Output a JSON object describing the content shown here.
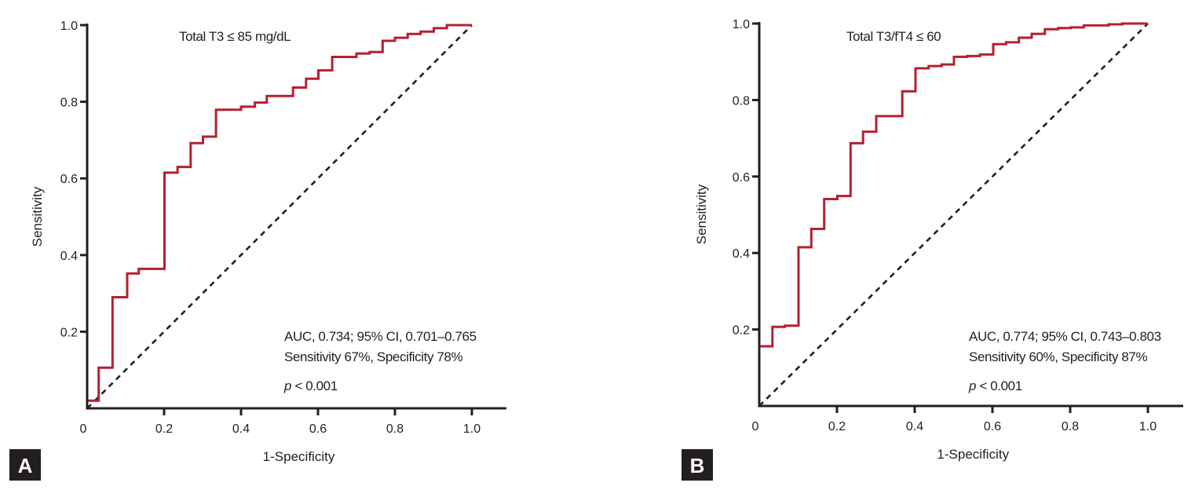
{
  "chart_data": [
    {
      "type": "line",
      "panel_label": "A",
      "title": "Total T3 ≤ 85 mg/dL",
      "xlabel": "1-Specificity",
      "ylabel": "Sensitivity",
      "xlim": [
        0,
        1.0
      ],
      "ylim": [
        0,
        1.0
      ],
      "xticks": [
        "0",
        "0.2",
        "0.4",
        "0.6",
        "0.8",
        "1.0"
      ],
      "yticks": [
        "0.2",
        "0.4",
        "0.6",
        "0.8",
        "1.0"
      ],
      "grid": false,
      "annotations": [
        "AUC, 0.734; 95% CI, 0.701–0.765",
        "Sensitivity 67%, Specificity 78%",
        "p",
        " < 0.001"
      ],
      "series": [
        {
          "name": "ROC",
          "color": "#b5202e",
          "style": "step",
          "x": [
            0,
            0,
            0.03,
            0.03,
            0.066,
            0.066,
            0.104,
            0.104,
            0.134,
            0.134,
            0.201,
            0.201,
            0.235,
            0.235,
            0.269,
            0.269,
            0.301,
            0.301,
            0.335,
            0.335,
            0.4,
            0.4,
            0.436,
            0.436,
            0.467,
            0.467,
            0.535,
            0.535,
            0.569,
            0.569,
            0.601,
            0.601,
            0.637,
            0.637,
            0.7,
            0.7,
            0.734,
            0.734,
            0.768,
            0.768,
            0.8,
            0.8,
            0.833,
            0.833,
            0.867,
            0.867,
            0.901,
            0.901,
            0.935,
            0.935,
            1.0
          ],
          "y": [
            0,
            0.02,
            0.02,
            0.106,
            0.106,
            0.29,
            0.29,
            0.352,
            0.352,
            0.364,
            0.364,
            0.615,
            0.615,
            0.63,
            0.63,
            0.692,
            0.692,
            0.709,
            0.709,
            0.779,
            0.779,
            0.787,
            0.787,
            0.798,
            0.798,
            0.815,
            0.815,
            0.837,
            0.837,
            0.86,
            0.86,
            0.882,
            0.882,
            0.917,
            0.917,
            0.926,
            0.926,
            0.93,
            0.93,
            0.959,
            0.959,
            0.967,
            0.967,
            0.977,
            0.977,
            0.983,
            0.983,
            0.992,
            0.992,
            1.0,
            1.0
          ]
        },
        {
          "name": "Reference",
          "color": "#231f20",
          "style": "dashed",
          "x": [
            0,
            1
          ],
          "y": [
            0,
            1
          ]
        }
      ]
    },
    {
      "type": "line",
      "panel_label": "B",
      "title": "Total T3/fT4 ≤ 60",
      "xlabel": "1-Specificity",
      "ylabel": "Sensitivity",
      "xlim": [
        0,
        1.0
      ],
      "ylim": [
        0,
        1.0
      ],
      "xticks": [
        "0",
        "0.2",
        "0.4",
        "0.6",
        "0.8",
        "1.0"
      ],
      "yticks": [
        "0.2",
        "0.4",
        "0.6",
        "0.8",
        "1.0"
      ],
      "grid": false,
      "annotations": [
        "AUC, 0.774; 95% CI, 0.743–0.803",
        "Sensitivity 60%, Specificity 87%",
        "p",
        " < 0.001"
      ],
      "series": [
        {
          "name": "ROC",
          "color": "#b5202e",
          "style": "step",
          "x": [
            0,
            0,
            0.034,
            0.034,
            0.066,
            0.066,
            0.101,
            0.101,
            0.134,
            0.134,
            0.167,
            0.167,
            0.201,
            0.201,
            0.235,
            0.235,
            0.267,
            0.267,
            0.301,
            0.301,
            0.368,
            0.368,
            0.402,
            0.402,
            0.436,
            0.436,
            0.469,
            0.469,
            0.501,
            0.501,
            0.535,
            0.535,
            0.568,
            0.568,
            0.602,
            0.602,
            0.635,
            0.635,
            0.668,
            0.668,
            0.701,
            0.701,
            0.735,
            0.735,
            0.769,
            0.769,
            0.802,
            0.802,
            0.835,
            0.835,
            0.899,
            0.899,
            0.934,
            0.934,
            1.0
          ],
          "y": [
            0,
            0.156,
            0.156,
            0.207,
            0.207,
            0.21,
            0.21,
            0.415,
            0.415,
            0.463,
            0.463,
            0.541,
            0.541,
            0.549,
            0.549,
            0.687,
            0.687,
            0.717,
            0.717,
            0.758,
            0.758,
            0.823,
            0.823,
            0.883,
            0.883,
            0.889,
            0.889,
            0.893,
            0.893,
            0.913,
            0.913,
            0.915,
            0.915,
            0.919,
            0.919,
            0.946,
            0.946,
            0.951,
            0.951,
            0.963,
            0.963,
            0.973,
            0.973,
            0.985,
            0.985,
            0.988,
            0.988,
            0.99,
            0.99,
            0.995,
            0.995,
            0.998,
            0.998,
            1.0,
            1.0
          ]
        },
        {
          "name": "Reference",
          "color": "#231f20",
          "style": "dashed",
          "x": [
            0,
            1
          ],
          "y": [
            0,
            1
          ]
        }
      ]
    }
  ]
}
